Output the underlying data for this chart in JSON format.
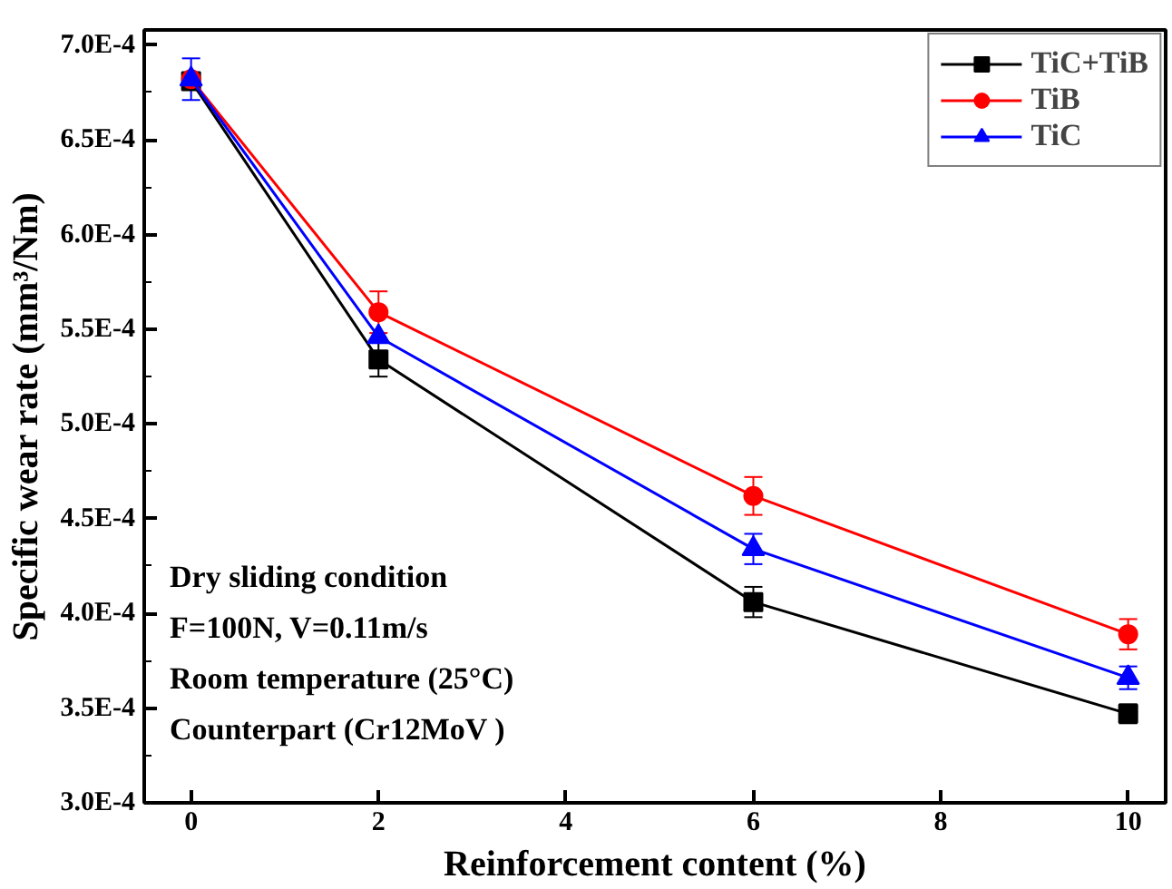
{
  "chart_data": {
    "type": "line",
    "xlabel": "Reinforcement content (%)",
    "ylabel": "Specific wear rate (mm³/Nm)",
    "x": [
      0,
      2,
      6,
      10
    ],
    "series": [
      {
        "name": "TiC+TiB",
        "color": "#000000",
        "marker": "square",
        "values": [
          0.000681,
          0.000534,
          0.000406,
          0.000347
        ],
        "errors": [
          null,
          9e-06,
          8e-06,
          5e-06
        ]
      },
      {
        "name": "TiB",
        "color": "#ff0000",
        "marker": "circle",
        "values": [
          0.000682,
          0.000559,
          0.000462,
          0.000389
        ],
        "errors": [
          null,
          1.1e-05,
          1e-05,
          8e-06
        ]
      },
      {
        "name": "TiC",
        "color": "#0000ff",
        "marker": "triangle",
        "values": [
          0.000682,
          0.000546,
          0.000434,
          0.000366
        ],
        "errors": [
          1.1e-05,
          null,
          8e-06,
          6e-06
        ]
      }
    ],
    "xlim": [
      -0.5,
      10.4
    ],
    "ylim": [
      0.0003,
      0.000708
    ],
    "xticks": [
      0,
      2,
      4,
      6,
      8,
      10
    ],
    "yticks": [
      {
        "value": 0.0003,
        "label": "3.0E-4"
      },
      {
        "value": 0.00035,
        "label": "3.5E-4"
      },
      {
        "value": 0.0004,
        "label": "4.0E-4"
      },
      {
        "value": 0.00045,
        "label": "4.5E-4"
      },
      {
        "value": 0.0005,
        "label": "5.0E-4"
      },
      {
        "value": 0.00055,
        "label": "5.5E-4"
      },
      {
        "value": 0.0006,
        "label": "6.0E-4"
      },
      {
        "value": 0.00065,
        "label": "6.5E-4"
      },
      {
        "value": 0.0007,
        "label": "7.0E-4"
      }
    ],
    "annotations": [
      "Dry sliding condition",
      "F=100N, V=0.11m/s",
      "Room temperature (25°C)",
      "Counterpart (Cr12MoV )"
    ],
    "legend": "top right",
    "grid": false,
    "line_style": "solid"
  }
}
